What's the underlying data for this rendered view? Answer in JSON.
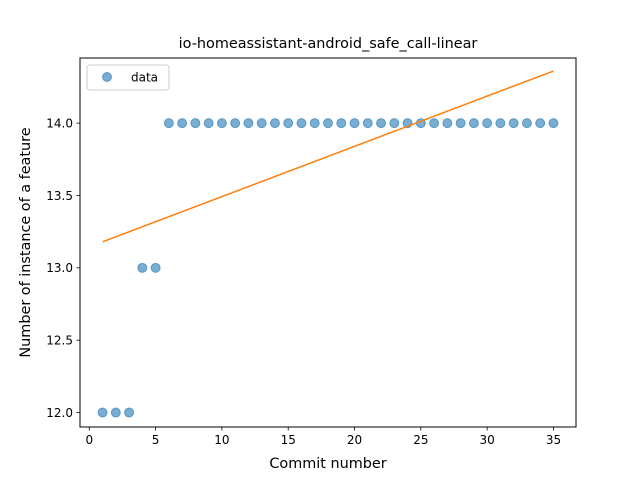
{
  "chart_data": {
    "type": "scatter",
    "title": "io-homeassistant-android_safe_call-linear",
    "xlabel": "Commit number",
    "ylabel": "Number of instance of a feature",
    "xlim": [
      -0.7,
      36.7
    ],
    "ylim": [
      11.9,
      14.45
    ],
    "xticks": [
      0,
      5,
      10,
      15,
      20,
      25,
      30,
      35
    ],
    "yticks": [
      12.0,
      12.5,
      13.0,
      13.5,
      14.0
    ],
    "ytick_labels": [
      "12.0",
      "12.5",
      "13.0",
      "13.5",
      "14.0"
    ],
    "legend_position": "upper-left",
    "series": [
      {
        "name": "data",
        "kind": "points",
        "color": "#1f77b4",
        "x": [
          1,
          2,
          3,
          4,
          5,
          6,
          7,
          8,
          9,
          10,
          11,
          12,
          13,
          14,
          15,
          16,
          17,
          18,
          19,
          20,
          21,
          22,
          23,
          24,
          25,
          26,
          27,
          28,
          29,
          30,
          31,
          32,
          33,
          34,
          35
        ],
        "y": [
          12,
          12,
          12,
          13,
          13,
          14,
          14,
          14,
          14,
          14,
          14,
          14,
          14,
          14,
          14,
          14,
          14,
          14,
          14,
          14,
          14,
          14,
          14,
          14,
          14,
          14,
          14,
          14,
          14,
          14,
          14,
          14,
          14,
          14,
          14
        ]
      },
      {
        "kind": "line",
        "color": "#ff7f0e",
        "x": [
          1,
          35
        ],
        "y": [
          13.18,
          14.36
        ]
      }
    ]
  }
}
